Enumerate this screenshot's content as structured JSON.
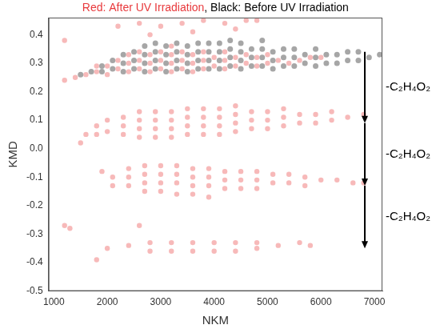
{
  "chart_data": {
    "type": "scatter",
    "title": [
      {
        "text": "Red: After UV Irradiation",
        "color": "#e8393c"
      },
      {
        "text": ", Black: Before UV Irradiation",
        "color": "#000000"
      }
    ],
    "x_label": "NKM",
    "y_label": "KMD",
    "xlim": [
      900,
      7150
    ],
    "ylim": [
      -0.5,
      0.46
    ],
    "xticks": [
      1000,
      2000,
      3000,
      4000,
      5000,
      6000,
      7000
    ],
    "yticks": [
      -0.5,
      -0.4,
      -0.3,
      -0.2,
      -0.1,
      {
        "value": 0,
        "label": "0.0"
      },
      0.1,
      0.2,
      0.3,
      0.4
    ],
    "grid": false,
    "series": [
      {
        "name": "After UV Irradiation",
        "color": "#f08080",
        "marker": "circle",
        "x": [
          1200,
          1200,
          1400,
          1600,
          1800,
          1800,
          2000,
          2000,
          2200,
          2200,
          2400,
          2400,
          2400,
          2600,
          2600,
          2600,
          2800,
          2800,
          2800,
          3000,
          3000,
          3000,
          3200,
          3200,
          3200,
          3200,
          3400,
          3400,
          3400,
          3600,
          3600,
          3600,
          3800,
          3800,
          3800,
          4000,
          4000,
          4200,
          4200,
          4200,
          4400,
          4400,
          4600,
          4600,
          4800,
          4800,
          5000,
          5000,
          5200,
          5400,
          5600,
          5800,
          6000,
          2200,
          2600,
          3000,
          3400,
          3800,
          4200,
          4600,
          4800,
          2800,
          3600,
          4400,
          1500,
          1600,
          1800,
          1800,
          2000,
          2000,
          2300,
          2300,
          2300,
          2600,
          2600,
          2600,
          2600,
          2900,
          2900,
          2900,
          2900,
          3200,
          3200,
          3200,
          3200,
          3500,
          3500,
          3500,
          3500,
          3800,
          3800,
          3800,
          3800,
          4100,
          4100,
          4100,
          4100,
          4400,
          4400,
          4400,
          4400,
          4700,
          4700,
          4700,
          5000,
          5000,
          5000,
          5300,
          5300,
          5300,
          5600,
          5600,
          5900,
          5900,
          6200,
          6200,
          6500,
          6800,
          1900,
          2100,
          2100,
          2400,
          2400,
          2400,
          2700,
          2700,
          2700,
          2700,
          3000,
          3000,
          3000,
          3000,
          3300,
          3300,
          3300,
          3300,
          3600,
          3600,
          3600,
          3600,
          3900,
          3900,
          3900,
          3900,
          4200,
          4200,
          4200,
          4500,
          4500,
          4500,
          4800,
          4800,
          4800,
          5100,
          5100,
          5400,
          5400,
          5700,
          5700,
          6000,
          6300,
          6600,
          6800,
          1200,
          1300,
          2600,
          1800,
          2000,
          2400,
          2800,
          2800,
          3200,
          3200,
          3600,
          3600,
          4000,
          4000,
          4400,
          4400,
          4800,
          4800,
          5200,
          5600,
          5800
        ],
        "values": [
          0.24,
          0.38,
          0.25,
          0.26,
          0.27,
          0.29,
          0.26,
          0.29,
          0.28,
          0.31,
          0.27,
          0.3,
          0.33,
          0.28,
          0.31,
          0.34,
          0.27,
          0.3,
          0.33,
          0.28,
          0.31,
          0.34,
          0.27,
          0.3,
          0.33,
          0.36,
          0.28,
          0.31,
          0.34,
          0.27,
          0.3,
          0.33,
          0.28,
          0.31,
          0.34,
          0.29,
          0.32,
          0.28,
          0.31,
          0.34,
          0.29,
          0.32,
          0.3,
          0.33,
          0.29,
          0.32,
          0.3,
          0.33,
          0.31,
          0.3,
          0.31,
          0.32,
          0.32,
          0.43,
          0.44,
          0.43,
          0.44,
          0.45,
          0.44,
          0.45,
          0.45,
          0.4,
          0.41,
          0.42,
          0.02,
          0.05,
          0.05,
          0.08,
          0.06,
          0.1,
          0.05,
          0.08,
          0.11,
          0.04,
          0.07,
          0.1,
          0.13,
          0.04,
          0.07,
          0.1,
          0.13,
          0.04,
          0.07,
          0.1,
          0.13,
          0.05,
          0.08,
          0.11,
          0.14,
          0.05,
          0.08,
          0.11,
          0.14,
          0.05,
          0.08,
          0.11,
          0.14,
          0.06,
          0.09,
          0.12,
          0.15,
          0.07,
          0.1,
          0.13,
          0.07,
          0.1,
          0.13,
          0.08,
          0.11,
          0.14,
          0.09,
          0.12,
          0.09,
          0.12,
          0.1,
          0.13,
          0.11,
          0.12,
          -0.08,
          -0.1,
          -0.13,
          -0.07,
          -0.1,
          -0.13,
          -0.06,
          -0.09,
          -0.12,
          -0.15,
          -0.06,
          -0.09,
          -0.12,
          -0.15,
          -0.06,
          -0.09,
          -0.12,
          -0.16,
          -0.07,
          -0.1,
          -0.13,
          -0.16,
          -0.07,
          -0.1,
          -0.13,
          -0.17,
          -0.08,
          -0.11,
          -0.14,
          -0.08,
          -0.11,
          -0.14,
          -0.08,
          -0.11,
          -0.14,
          -0.09,
          -0.12,
          -0.09,
          -0.12,
          -0.1,
          -0.13,
          -0.11,
          -0.11,
          -0.12,
          -0.12,
          -0.27,
          -0.28,
          -0.27,
          -0.39,
          -0.35,
          -0.34,
          -0.33,
          -0.36,
          -0.33,
          -0.36,
          -0.33,
          -0.36,
          -0.33,
          -0.36,
          -0.33,
          -0.36,
          -0.33,
          -0.35,
          -0.34,
          -0.33,
          -0.34
        ]
      },
      {
        "name": "Before UV Irradiation",
        "color": "#000000",
        "marker": "circle",
        "x": [
          1500,
          1700,
          1900,
          1900,
          2100,
          2100,
          2300,
          2300,
          2300,
          2500,
          2500,
          2500,
          2700,
          2700,
          2700,
          2700,
          2900,
          2900,
          2900,
          2900,
          3100,
          3100,
          3100,
          3100,
          3300,
          3300,
          3300,
          3300,
          3500,
          3500,
          3500,
          3500,
          3700,
          3700,
          3700,
          3700,
          3900,
          3900,
          3900,
          3900,
          4100,
          4100,
          4100,
          4100,
          4300,
          4300,
          4300,
          4300,
          4500,
          4500,
          4500,
          4500,
          4700,
          4700,
          4700,
          4900,
          4900,
          4900,
          4900,
          5100,
          5100,
          5100,
          5300,
          5300,
          5300,
          5500,
          5500,
          5500,
          5700,
          5700,
          5900,
          5900,
          5900,
          6100,
          6100,
          6300,
          6300,
          6500,
          6500,
          6700,
          6700,
          6900,
          7100
        ],
        "values": [
          0.26,
          0.27,
          0.27,
          0.29,
          0.28,
          0.31,
          0.27,
          0.3,
          0.33,
          0.28,
          0.31,
          0.34,
          0.27,
          0.3,
          0.33,
          0.36,
          0.28,
          0.31,
          0.34,
          0.37,
          0.27,
          0.3,
          0.33,
          0.36,
          0.28,
          0.31,
          0.34,
          0.37,
          0.27,
          0.3,
          0.33,
          0.36,
          0.28,
          0.31,
          0.34,
          0.37,
          0.28,
          0.31,
          0.34,
          0.37,
          0.28,
          0.31,
          0.34,
          0.37,
          0.29,
          0.32,
          0.35,
          0.38,
          0.28,
          0.31,
          0.34,
          0.37,
          0.29,
          0.32,
          0.35,
          0.29,
          0.32,
          0.35,
          0.38,
          0.28,
          0.31,
          0.34,
          0.29,
          0.32,
          0.35,
          0.29,
          0.32,
          0.35,
          0.3,
          0.33,
          0.29,
          0.32,
          0.35,
          0.3,
          0.33,
          0.3,
          0.33,
          0.31,
          0.34,
          0.31,
          0.34,
          0.32,
          0.33
        ]
      }
    ],
    "annotations": [
      {
        "text": "-C₂H₄O₂",
        "from": 0.34,
        "to": 0.09
      },
      {
        "text": "-C₂H₄O₂",
        "from": 0.09,
        "to": -0.13
      },
      {
        "text": "-C₂H₄O₂",
        "from": -0.13,
        "to": -0.35
      }
    ]
  }
}
